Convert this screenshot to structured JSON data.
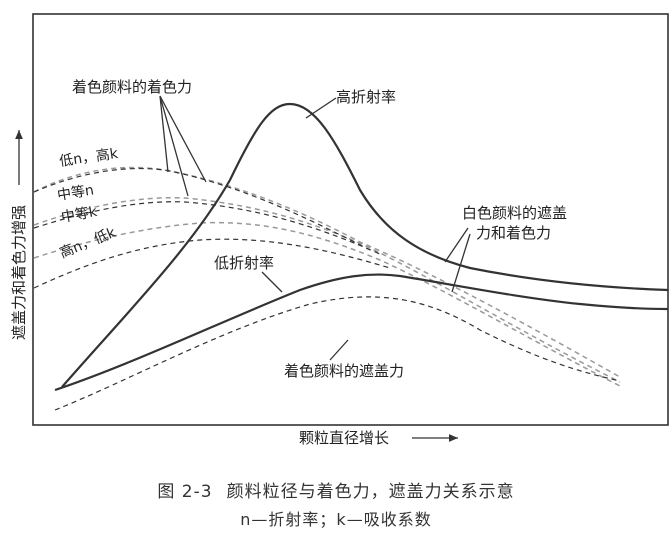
{
  "axes": {
    "ylabel": "遮盖力和着色力增强",
    "xlabel": "颗粒直径增长"
  },
  "labels": {
    "colored_pigment_tinting": "着色颜料的着色力",
    "high_ri": "高折射率",
    "low_n_high_k": "低n，高k",
    "mid_n": "中等n",
    "mid_k": "中等k",
    "high_n_low_k": "高n，低k",
    "white_pigment_line1": "白色颜料的遮盖",
    "white_pigment_line2": "力和着色力",
    "low_ri": "低折射率",
    "colored_pigment_hiding": "着色颜料的遮盖力"
  },
  "caption": {
    "figure_number": "图 2-3",
    "title": "颜料粒径与着色力，遮盖力关系示意",
    "legend": "n—折射率；k—吸收系数"
  }
}
